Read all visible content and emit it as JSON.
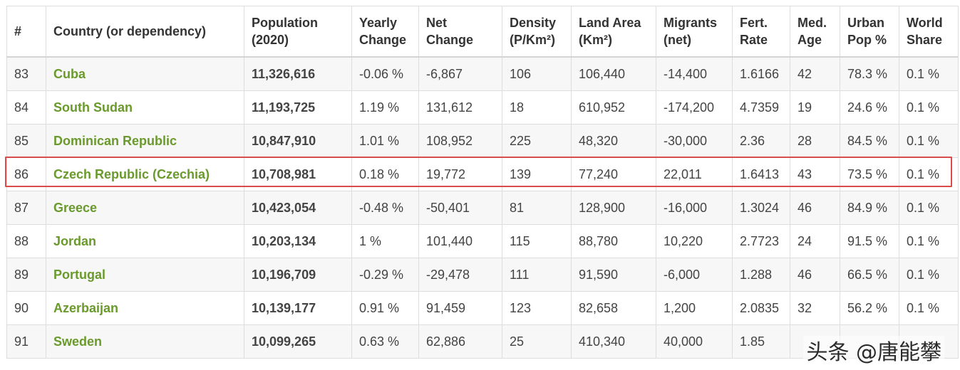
{
  "table": {
    "headers": [
      {
        "l1": "#",
        "l2": ""
      },
      {
        "l1": "Country (or dependency)",
        "l2": ""
      },
      {
        "l1": "Population",
        "l2": "(2020)"
      },
      {
        "l1": "Yearly",
        "l2": "Change"
      },
      {
        "l1": "Net",
        "l2": "Change"
      },
      {
        "l1": "Density",
        "l2": "(P/Km²)"
      },
      {
        "l1": "Land Area",
        "l2": "(Km²)"
      },
      {
        "l1": "Migrants",
        "l2": "(net)"
      },
      {
        "l1": "Fert.",
        "l2": "Rate"
      },
      {
        "l1": "Med.",
        "l2": "Age"
      },
      {
        "l1": "Urban",
        "l2": "Pop %"
      },
      {
        "l1": "World",
        "l2": "Share"
      }
    ],
    "rows": [
      {
        "rank": "83",
        "country": "Cuba",
        "population": "11,326,616",
        "yearly_change": "-0.06 %",
        "net_change": "-6,867",
        "density": "106",
        "land_area": "106,440",
        "migrants": "-14,400",
        "fert_rate": "1.6166",
        "med_age": "42",
        "urban_pop": "78.3 %",
        "world_share": "0.1 %"
      },
      {
        "rank": "84",
        "country": "South Sudan",
        "population": "11,193,725",
        "yearly_change": "1.19 %",
        "net_change": "131,612",
        "density": "18",
        "land_area": "610,952",
        "migrants": "-174,200",
        "fert_rate": "4.7359",
        "med_age": "19",
        "urban_pop": "24.6 %",
        "world_share": "0.1 %"
      },
      {
        "rank": "85",
        "country": "Dominican Republic",
        "population": "10,847,910",
        "yearly_change": "1.01 %",
        "net_change": "108,952",
        "density": "225",
        "land_area": "48,320",
        "migrants": "-30,000",
        "fert_rate": "2.36",
        "med_age": "28",
        "urban_pop": "84.5 %",
        "world_share": "0.1 %"
      },
      {
        "rank": "86",
        "country": "Czech Republic (Czechia)",
        "population": "10,708,981",
        "yearly_change": "0.18 %",
        "net_change": "19,772",
        "density": "139",
        "land_area": "77,240",
        "migrants": "22,011",
        "fert_rate": "1.6413",
        "med_age": "43",
        "urban_pop": "73.5 %",
        "world_share": "0.1 %"
      },
      {
        "rank": "87",
        "country": "Greece",
        "population": "10,423,054",
        "yearly_change": "-0.48 %",
        "net_change": "-50,401",
        "density": "81",
        "land_area": "128,900",
        "migrants": "-16,000",
        "fert_rate": "1.3024",
        "med_age": "46",
        "urban_pop": "84.9 %",
        "world_share": "0.1 %"
      },
      {
        "rank": "88",
        "country": "Jordan",
        "population": "10,203,134",
        "yearly_change": "1 %",
        "net_change": "101,440",
        "density": "115",
        "land_area": "88,780",
        "migrants": "10,220",
        "fert_rate": "2.7723",
        "med_age": "24",
        "urban_pop": "91.5 %",
        "world_share": "0.1 %"
      },
      {
        "rank": "89",
        "country": "Portugal",
        "population": "10,196,709",
        "yearly_change": "-0.29 %",
        "net_change": "-29,478",
        "density": "111",
        "land_area": "91,590",
        "migrants": "-6,000",
        "fert_rate": "1.288",
        "med_age": "46",
        "urban_pop": "66.5 %",
        "world_share": "0.1 %"
      },
      {
        "rank": "90",
        "country": "Azerbaijan",
        "population": "10,139,177",
        "yearly_change": "0.91 %",
        "net_change": "91,459",
        "density": "123",
        "land_area": "82,658",
        "migrants": "1,200",
        "fert_rate": "2.0835",
        "med_age": "32",
        "urban_pop": "56.2 %",
        "world_share": "0.1 %"
      },
      {
        "rank": "91",
        "country": "Sweden",
        "population": "10,099,265",
        "yearly_change": "0.63 %",
        "net_change": "62,886",
        "density": "25",
        "land_area": "410,340",
        "migrants": "40,000",
        "fert_rate": "1.85",
        "med_age": "",
        "urban_pop": "",
        "world_share": ""
      }
    ]
  },
  "highlight": {
    "row_rank": "86",
    "color": "#d94c4c"
  },
  "colors": {
    "country_link": "#6a9a2c",
    "border": "#dddddd",
    "stripe": "#f7f7f7"
  },
  "watermark": {
    "text": "头条 @唐能攀"
  }
}
